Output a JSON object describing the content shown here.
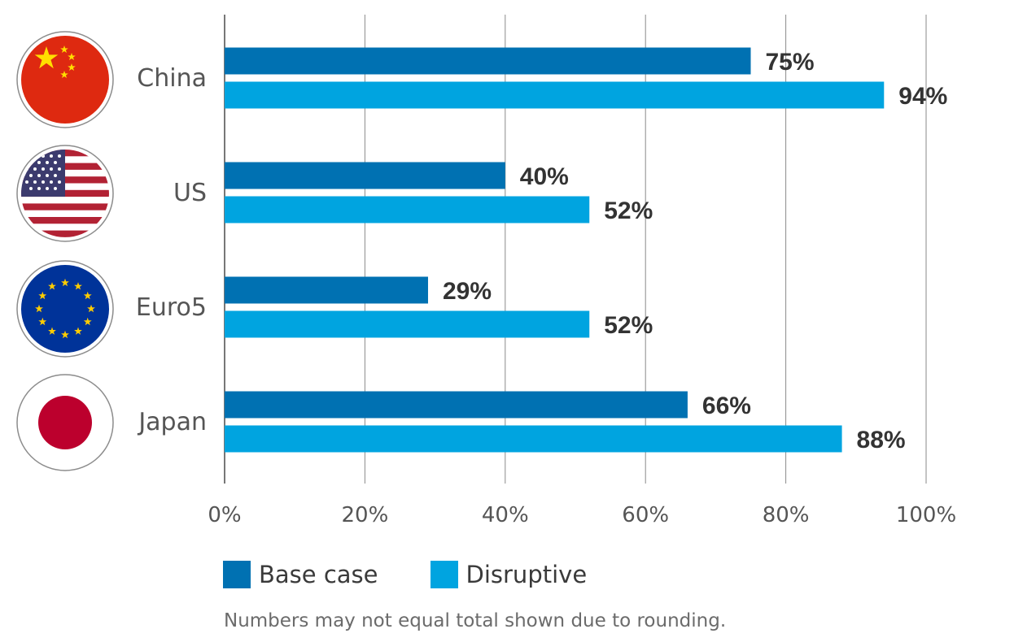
{
  "chart_data": {
    "type": "bar",
    "orientation": "horizontal",
    "categories": [
      "China",
      "US",
      "Euro5",
      "Japan"
    ],
    "category_icons": [
      "china-flag-icon",
      "us-flag-icon",
      "eu-flag-icon",
      "japan-flag-icon"
    ],
    "series": [
      {
        "name": "Base case",
        "values": [
          75,
          40,
          29,
          66
        ],
        "labels": [
          "75%",
          "40%",
          "29%",
          "66%"
        ],
        "color": "#0071b2"
      },
      {
        "name": "Disruptive",
        "values": [
          94,
          52,
          52,
          88
        ],
        "labels": [
          "94%",
          "52%",
          "52%",
          "88%"
        ],
        "color": "#00a4e0"
      }
    ],
    "xlim": [
      0,
      100
    ],
    "xticks": [
      0,
      20,
      40,
      60,
      80,
      100
    ],
    "xtick_labels": [
      "0%",
      "20%",
      "40%",
      "60%",
      "80%",
      "100%"
    ],
    "grid": true,
    "legend_position": "bottom-left",
    "footnote": "Numbers may not equal total shown due to rounding."
  }
}
